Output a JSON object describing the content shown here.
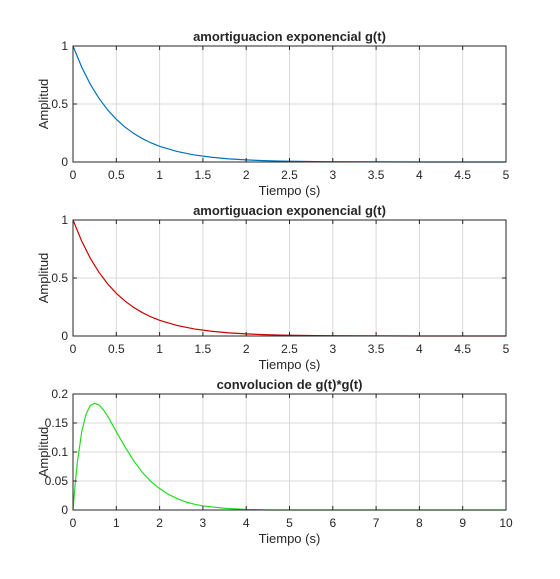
{
  "chart_data": [
    {
      "type": "line",
      "title": "amortiguacion exponencial g(t)",
      "xlabel": "Tiempo (s)",
      "ylabel": "Amplitud",
      "xlim": [
        0,
        5
      ],
      "ylim": [
        0,
        1
      ],
      "xticks": [
        "0",
        "0.5",
        "1",
        "1.5",
        "2",
        "2.5",
        "3",
        "3.5",
        "4",
        "4.5",
        "5"
      ],
      "yticks": [
        "0",
        "0.5",
        "1"
      ],
      "grid": true,
      "series": [
        {
          "color": "#0072bd",
          "x": [
            0,
            0.1,
            0.2,
            0.3,
            0.4,
            0.5,
            0.6,
            0.7,
            0.8,
            0.9,
            1.0,
            1.2,
            1.4,
            1.6,
            1.8,
            2.0,
            2.2,
            2.4,
            2.6,
            2.8,
            3.0,
            3.5,
            4.0,
            4.5,
            5.0
          ],
          "y": [
            1,
            0.819,
            0.67,
            0.549,
            0.449,
            0.368,
            0.301,
            0.247,
            0.202,
            0.165,
            0.135,
            0.091,
            0.061,
            0.041,
            0.027,
            0.018,
            0.012,
            0.008,
            0.006,
            0.004,
            0.002,
            0.001,
            0.0,
            0.0,
            0.0
          ]
        }
      ]
    },
    {
      "type": "line",
      "title": "amortiguacion exponencial g(t)",
      "xlabel": "Tiempo (s)",
      "ylabel": "Amplitud",
      "xlim": [
        0,
        5
      ],
      "ylim": [
        0,
        1
      ],
      "xticks": [
        "0",
        "0.5",
        "1",
        "1.5",
        "2",
        "2.5",
        "3",
        "3.5",
        "4",
        "4.5",
        "5"
      ],
      "yticks": [
        "0",
        "0.5",
        "1"
      ],
      "grid": true,
      "series": [
        {
          "color": "#cc0000",
          "x": [
            0,
            0.1,
            0.2,
            0.3,
            0.4,
            0.5,
            0.6,
            0.7,
            0.8,
            0.9,
            1.0,
            1.2,
            1.4,
            1.6,
            1.8,
            2.0,
            2.2,
            2.4,
            2.6,
            2.8,
            3.0,
            3.5,
            4.0,
            4.5,
            5.0
          ],
          "y": [
            1,
            0.819,
            0.67,
            0.549,
            0.449,
            0.368,
            0.301,
            0.247,
            0.202,
            0.165,
            0.135,
            0.091,
            0.061,
            0.041,
            0.027,
            0.018,
            0.012,
            0.008,
            0.006,
            0.004,
            0.002,
            0.001,
            0.0,
            0.0,
            0.0
          ]
        }
      ]
    },
    {
      "type": "line",
      "title": "convolucion de g(t)*g(t)",
      "xlabel": "Tiempo (s)",
      "ylabel": "Amplitud",
      "xlim": [
        0,
        10
      ],
      "ylim": [
        0,
        0.2
      ],
      "xticks": [
        "0",
        "1",
        "2",
        "3",
        "4",
        "5",
        "6",
        "7",
        "8",
        "9",
        "10"
      ],
      "yticks": [
        "0",
        "0.05",
        "0.1",
        "0.15",
        "0.2"
      ],
      "grid": true,
      "series": [
        {
          "color": "#22dd22",
          "x": [
            0,
            0.05,
            0.1,
            0.2,
            0.3,
            0.4,
            0.5,
            0.6,
            0.7,
            0.8,
            1.0,
            1.2,
            1.4,
            1.6,
            1.8,
            2.0,
            2.2,
            2.4,
            2.6,
            2.8,
            3.0,
            3.5,
            4.0,
            4.5,
            5,
            6,
            7,
            8,
            9,
            10
          ],
          "y": [
            0,
            0.045,
            0.082,
            0.134,
            0.165,
            0.18,
            0.184,
            0.181,
            0.173,
            0.162,
            0.135,
            0.109,
            0.085,
            0.065,
            0.049,
            0.037,
            0.027,
            0.02,
            0.014,
            0.01,
            0.007,
            0.003,
            0.001,
            0.0,
            0.0,
            0.0,
            0.0,
            0.0,
            0.0,
            0.0
          ]
        }
      ]
    }
  ]
}
